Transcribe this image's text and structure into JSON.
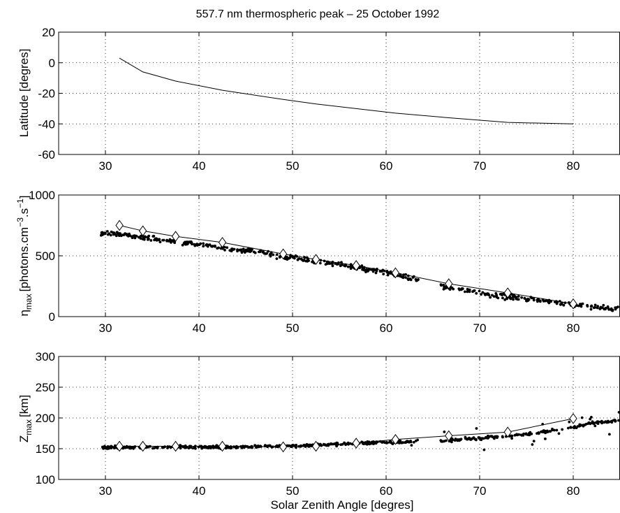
{
  "chart_data": [
    {
      "type": "line",
      "title": "557.7 nm thermospheric peak – 25 October 1992",
      "xlabel": "",
      "ylabel": "Latitude [degres]",
      "xlim": [
        25,
        85
      ],
      "ylim": [
        -60,
        20
      ],
      "xticks": [
        30,
        40,
        50,
        60,
        70,
        80
      ],
      "yticks": [
        -60,
        -40,
        -20,
        0,
        20
      ],
      "grid": true,
      "series": [
        {
          "style": "line",
          "x": [
            31.5,
            34,
            37.5,
            42.5,
            49,
            52.5,
            56.8,
            61,
            66.7,
            73,
            80
          ],
          "y": [
            3,
            -6,
            -12,
            -18,
            -24,
            -27,
            -30,
            -33,
            -36,
            -39,
            -40
          ]
        }
      ]
    },
    {
      "type": "scatter",
      "xlabel": "",
      "ylabel": "η",
      "ylabel_sub": "max",
      "ylabel_rest": "[photons.cm",
      "ylabel_sup1": "−3",
      "ylabel_mid": ".s",
      "ylabel_sup2": "−1",
      "ylabel_end": "]",
      "xlim": [
        25,
        85
      ],
      "ylim": [
        0,
        1000
      ],
      "xticks": [
        30,
        40,
        50,
        60,
        70,
        80
      ],
      "yticks": [
        0,
        500,
        1000
      ],
      "grid": true,
      "scatter_trend": {
        "x": [
          29.5,
          34,
          40,
          46,
          52,
          56,
          60,
          63,
          66,
          70,
          74,
          78,
          82,
          85
        ],
        "y": [
          690,
          650,
          590,
          530,
          460,
          415,
          360,
          310,
          250,
          195,
          155,
          120,
          85,
          55
        ],
        "x_gaps": [
          [
            63.5,
            65.8
          ]
        ],
        "approx_points": 560,
        "spread": 35
      },
      "series": [
        {
          "style": "line-diamond",
          "x": [
            31.5,
            34,
            37.5,
            42.5,
            49,
            52.5,
            56.8,
            61,
            66.7,
            73,
            80
          ],
          "y": [
            750,
            705,
            660,
            610,
            515,
            470,
            420,
            360,
            270,
            195,
            105
          ]
        }
      ]
    },
    {
      "type": "scatter",
      "xlabel": "Solar Zenith Angle [degres]",
      "ylabel": "Z",
      "ylabel_sub": "max",
      "ylabel_rest": "[km]",
      "xlim": [
        25,
        85
      ],
      "ylim": [
        100,
        300
      ],
      "xticks": [
        30,
        40,
        50,
        60,
        70,
        80
      ],
      "yticks": [
        100,
        150,
        200,
        250,
        300
      ],
      "grid": true,
      "scatter_trend": {
        "x": [
          29.5,
          45,
          52,
          56,
          60,
          63,
          66,
          70,
          74,
          78,
          80,
          82,
          85
        ],
        "y": [
          152,
          153,
          155,
          158,
          160,
          162,
          163,
          167,
          172,
          180,
          185,
          192,
          195
        ],
        "x_gaps": [
          [
            63.5,
            65.8
          ]
        ],
        "approx_points": 600,
        "spread": 4
      },
      "series": [
        {
          "style": "line-diamond",
          "x": [
            31.5,
            34,
            37.5,
            42.5,
            49,
            52.5,
            56.8,
            61,
            66.7,
            73,
            80
          ],
          "y": [
            154,
            154,
            154,
            154,
            153,
            154,
            159,
            165,
            171,
            177,
            199
          ]
        }
      ]
    }
  ]
}
